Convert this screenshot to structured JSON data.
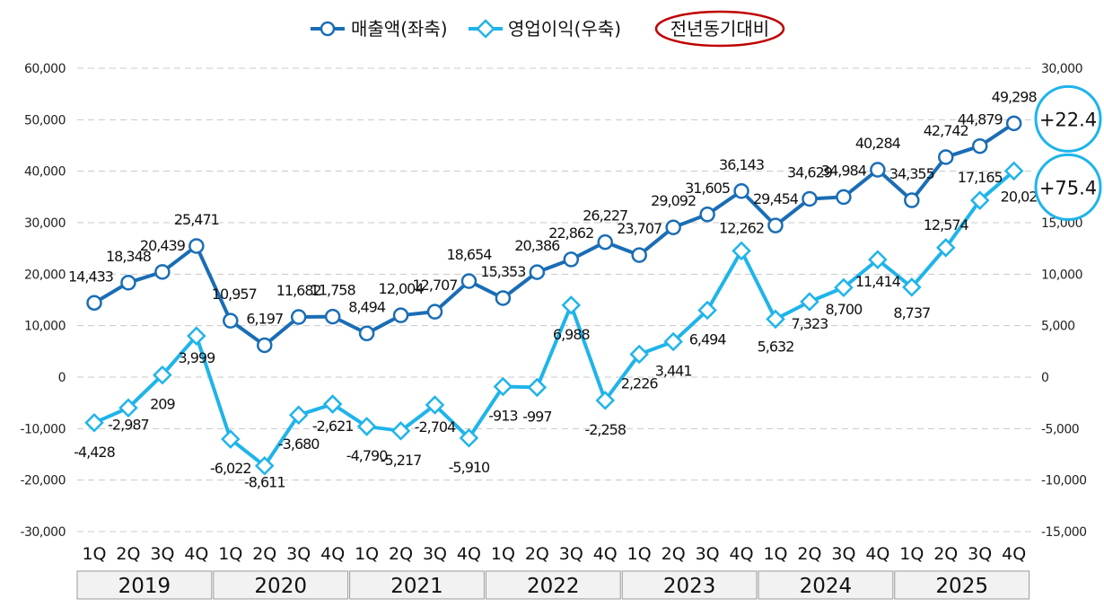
{
  "chart_data": {
    "type": "line",
    "title": "",
    "legend": {
      "placement": "top-center",
      "items": [
        "매출액(좌축)",
        "영업이익(우축)"
      ],
      "note": "전년동기대비"
    },
    "quarters": [
      "1Q",
      "2Q",
      "3Q",
      "4Q",
      "1Q",
      "2Q",
      "3Q",
      "4Q",
      "1Q",
      "2Q",
      "3Q",
      "4Q",
      "1Q",
      "2Q",
      "3Q",
      "4Q",
      "1Q",
      "2Q",
      "3Q",
      "4Q",
      "1Q",
      "2Q",
      "3Q",
      "4Q",
      "1Q",
      "2Q",
      "3Q",
      "4Q"
    ],
    "years": [
      "2019",
      "2020",
      "2021",
      "2022",
      "2023",
      "2024",
      "2025"
    ],
    "left_axis": {
      "ticks": [
        "60,000",
        "50,000",
        "40,000",
        "30,000",
        "20,000",
        "10,000",
        "0",
        "-10,000",
        "-20,000",
        "-30,000"
      ],
      "ylim": [
        -30000,
        60000
      ]
    },
    "right_axis": {
      "ticks": [
        "30,000",
        "25,000",
        "20,000",
        "15,000",
        "10,000",
        "5,000",
        "0",
        "-5,000",
        "-10,000",
        "-15,000"
      ],
      "ylim": [
        -15000,
        30000
      ]
    },
    "grid": true,
    "series": [
      {
        "name": "매출액(좌축)",
        "axis": "left",
        "color": "#1a6db5",
        "marker": "circle",
        "values": [
          14433,
          18348,
          20439,
          25471,
          10957,
          6197,
          11682,
          11758,
          8494,
          12004,
          12707,
          18654,
          15353,
          20386,
          22862,
          26227,
          23707,
          29092,
          31605,
          36143,
          29454,
          34629,
          34984,
          40284,
          34355,
          42742,
          44879,
          49298
        ],
        "labels": [
          "14,433",
          "18,348",
          "20,439",
          "25,471",
          "10,957",
          "6,197",
          "11,682",
          "11,758",
          "8,494",
          "12,004",
          "12,707",
          "18,654",
          "15,353",
          "20,386",
          "22,862",
          "26,227",
          "23,707",
          "29,092",
          "31,605",
          "36,143",
          "29,454",
          "34,629",
          "34,984",
          "40,284",
          "34,355",
          "42,742",
          "44,879",
          "49,298"
        ]
      },
      {
        "name": "영업이익(우축)",
        "axis": "right",
        "color": "#1fb4ea",
        "marker": "diamond",
        "values": [
          -4428,
          -2987,
          209,
          3999,
          -6022,
          -8611,
          -3680,
          -2621,
          -4790,
          -5217,
          -2704,
          -5910,
          -913,
          -997,
          6988,
          -2258,
          2226,
          3441,
          6494,
          12262,
          5632,
          7323,
          8700,
          11414,
          8737,
          12574,
          17165,
          20021
        ],
        "labels": [
          "-4,428",
          "-2,987",
          "209",
          "3,999",
          "-6,022",
          "-8,611",
          "-3,680",
          "-2,621",
          "-4,790",
          "-5,217",
          "-2,704",
          "-5,910",
          "-913",
          "-997",
          "6,988",
          "-2,258",
          "2,226",
          "3,441",
          "6,494",
          "12,262",
          "5,632",
          "7,323",
          "8,700",
          "11,414",
          "8,737",
          "12,574",
          "17,165",
          "20,021"
        ]
      }
    ],
    "annotations": [
      {
        "series": "매출액(좌축)",
        "text": "+22.4"
      },
      {
        "series": "영업이익(우축)",
        "text": "+75.4"
      }
    ]
  }
}
